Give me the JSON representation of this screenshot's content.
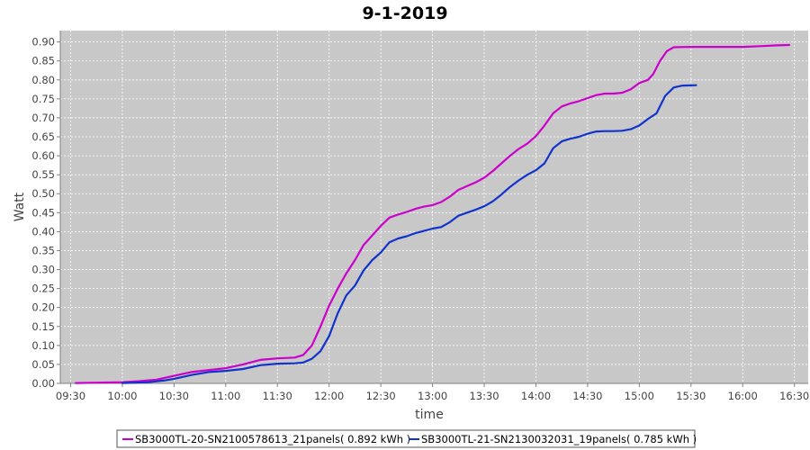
{
  "chart_data": {
    "type": "line",
    "title": "9-1-2019",
    "xlabel": "time",
    "ylabel": "Watt",
    "x_ticks": [
      "09:30",
      "10:00",
      "10:30",
      "11:00",
      "11:30",
      "12:00",
      "12:30",
      "13:00",
      "13:30",
      "14:00",
      "14:30",
      "15:00",
      "15:30",
      "16:00",
      "16:30"
    ],
    "y_ticks": [
      "0.00",
      "0.05",
      "0.10",
      "0.15",
      "0.20",
      "0.25",
      "0.30",
      "0.35",
      "0.40",
      "0.45",
      "0.50",
      "0.55",
      "0.60",
      "0.65",
      "0.70",
      "0.75",
      "0.80",
      "0.85",
      "0.90"
    ],
    "xlim": [
      "09:24",
      "16:38"
    ],
    "ylim": [
      0,
      0.93
    ],
    "grid": true,
    "legend_position": "bottom",
    "series": [
      {
        "name": "SB3000TL-20-SN2100578613_21panels( 0.892 kWh )",
        "color": "#cc00cc",
        "points": [
          [
            "09:33",
            0.001
          ],
          [
            "09:45",
            0.002
          ],
          [
            "10:00",
            0.003
          ],
          [
            "10:10",
            0.006
          ],
          [
            "10:20",
            0.01
          ],
          [
            "10:30",
            0.02
          ],
          [
            "10:40",
            0.03
          ],
          [
            "10:50",
            0.035
          ],
          [
            "11:00",
            0.04
          ],
          [
            "11:10",
            0.05
          ],
          [
            "11:20",
            0.062
          ],
          [
            "11:30",
            0.066
          ],
          [
            "11:40",
            0.068
          ],
          [
            "11:45",
            0.075
          ],
          [
            "11:50",
            0.1
          ],
          [
            "11:55",
            0.15
          ],
          [
            "12:00",
            0.205
          ],
          [
            "12:05",
            0.25
          ],
          [
            "12:10",
            0.29
          ],
          [
            "12:15",
            0.325
          ],
          [
            "12:20",
            0.365
          ],
          [
            "12:25",
            0.39
          ],
          [
            "12:30",
            0.415
          ],
          [
            "12:35",
            0.437
          ],
          [
            "12:40",
            0.445
          ],
          [
            "12:45",
            0.452
          ],
          [
            "12:50",
            0.46
          ],
          [
            "12:55",
            0.466
          ],
          [
            "13:00",
            0.47
          ],
          [
            "13:05",
            0.478
          ],
          [
            "13:10",
            0.492
          ],
          [
            "13:15",
            0.51
          ],
          [
            "13:20",
            0.52
          ],
          [
            "13:25",
            0.53
          ],
          [
            "13:30",
            0.542
          ],
          [
            "13:35",
            0.56
          ],
          [
            "13:40",
            0.58
          ],
          [
            "13:45",
            0.6
          ],
          [
            "13:50",
            0.618
          ],
          [
            "13:55",
            0.632
          ],
          [
            "14:00",
            0.652
          ],
          [
            "14:05",
            0.68
          ],
          [
            "14:10",
            0.712
          ],
          [
            "14:15",
            0.73
          ],
          [
            "14:20",
            0.738
          ],
          [
            "14:25",
            0.744
          ],
          [
            "14:30",
            0.752
          ],
          [
            "14:35",
            0.76
          ],
          [
            "14:40",
            0.764
          ],
          [
            "14:45",
            0.764
          ],
          [
            "14:50",
            0.766
          ],
          [
            "14:55",
            0.775
          ],
          [
            "15:00",
            0.792
          ],
          [
            "15:05",
            0.8
          ],
          [
            "15:08",
            0.815
          ],
          [
            "15:12",
            0.85
          ],
          [
            "15:16",
            0.876
          ],
          [
            "15:20",
            0.886
          ],
          [
            "15:30",
            0.887
          ],
          [
            "15:45",
            0.887
          ],
          [
            "16:00",
            0.887
          ],
          [
            "16:10",
            0.889
          ],
          [
            "16:20",
            0.891
          ],
          [
            "16:27",
            0.892
          ]
        ]
      },
      {
        "name": "SB3000TL-21-SN2130032031_19panels( 0.785 kWh )",
        "color": "#1133cc",
        "points": [
          [
            "10:00",
            0.001
          ],
          [
            "10:15",
            0.003
          ],
          [
            "10:25",
            0.008
          ],
          [
            "10:30",
            0.012
          ],
          [
            "10:40",
            0.022
          ],
          [
            "10:50",
            0.03
          ],
          [
            "11:00",
            0.033
          ],
          [
            "11:10",
            0.038
          ],
          [
            "11:20",
            0.048
          ],
          [
            "11:30",
            0.052
          ],
          [
            "11:40",
            0.053
          ],
          [
            "11:45",
            0.055
          ],
          [
            "11:50",
            0.065
          ],
          [
            "11:55",
            0.085
          ],
          [
            "12:00",
            0.125
          ],
          [
            "12:05",
            0.185
          ],
          [
            "12:10",
            0.232
          ],
          [
            "12:15",
            0.258
          ],
          [
            "12:20",
            0.298
          ],
          [
            "12:25",
            0.325
          ],
          [
            "12:30",
            0.345
          ],
          [
            "12:35",
            0.372
          ],
          [
            "12:40",
            0.382
          ],
          [
            "12:45",
            0.388
          ],
          [
            "12:50",
            0.396
          ],
          [
            "12:55",
            0.402
          ],
          [
            "13:00",
            0.408
          ],
          [
            "13:05",
            0.412
          ],
          [
            "13:10",
            0.425
          ],
          [
            "13:15",
            0.442
          ],
          [
            "13:20",
            0.45
          ],
          [
            "13:25",
            0.458
          ],
          [
            "13:30",
            0.467
          ],
          [
            "13:35",
            0.48
          ],
          [
            "13:40",
            0.498
          ],
          [
            "13:45",
            0.518
          ],
          [
            "13:50",
            0.535
          ],
          [
            "13:55",
            0.55
          ],
          [
            "14:00",
            0.562
          ],
          [
            "14:05",
            0.58
          ],
          [
            "14:10",
            0.62
          ],
          [
            "14:15",
            0.638
          ],
          [
            "14:20",
            0.645
          ],
          [
            "14:25",
            0.65
          ],
          [
            "14:30",
            0.658
          ],
          [
            "14:35",
            0.664
          ],
          [
            "14:40",
            0.665
          ],
          [
            "14:45",
            0.665
          ],
          [
            "14:50",
            0.666
          ],
          [
            "14:55",
            0.67
          ],
          [
            "15:00",
            0.68
          ],
          [
            "15:05",
            0.697
          ],
          [
            "15:10",
            0.712
          ],
          [
            "15:15",
            0.758
          ],
          [
            "15:20",
            0.78
          ],
          [
            "15:25",
            0.785
          ],
          [
            "15:33",
            0.786
          ]
        ]
      }
    ]
  }
}
